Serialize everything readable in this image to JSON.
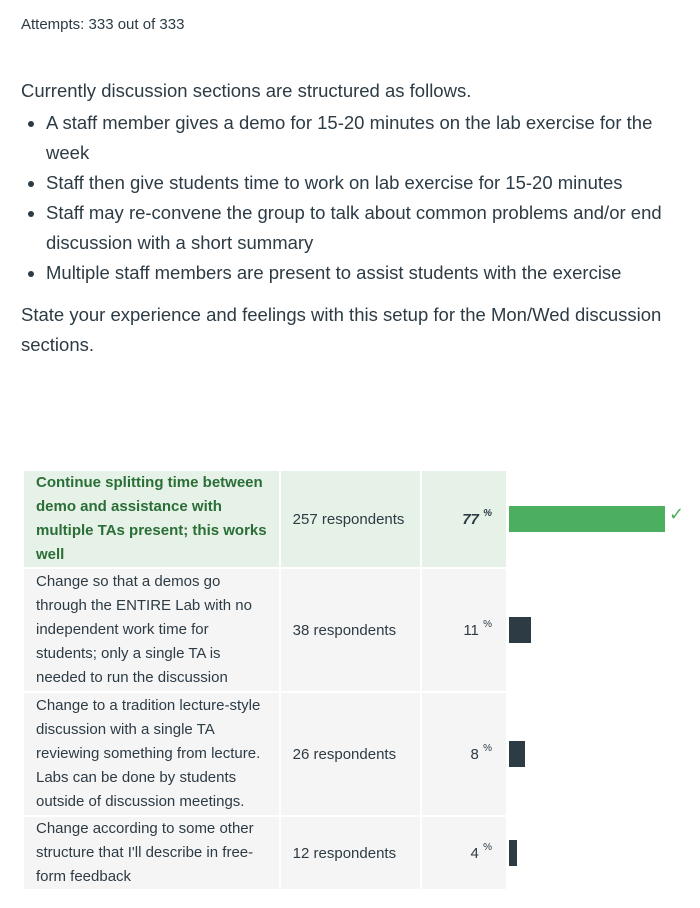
{
  "header": {
    "attempts": "Attempts: 333 out of 333"
  },
  "question": {
    "intro": "Currently discussion sections are structured as follows.",
    "bullets": [
      "A staff member gives a demo for 15-20 minutes on the lab exercise for the week",
      "Staff then give students time to work on lab exercise for 15-20 minutes",
      "Staff may re-convene the group to talk about common problems and/or end discussion with a short summary",
      "Multiple staff members are present to assist students with the exercise"
    ],
    "prompt": "State your experience and feelings with this setup for the Mon/Wed discussion sections."
  },
  "results": [
    {
      "answer": "Continue splitting time between demo and assistance with multiple TAs present; this works well",
      "respondents": "257 respondents",
      "percent": "77",
      "percent_unit": "%",
      "fraction": 0.77,
      "correct": true
    },
    {
      "answer": "Change so that a demos go through the ENTIRE Lab with no independent work time for students; only a single TA is needed to run the discussion",
      "respondents": "38 respondents",
      "percent": "11",
      "percent_unit": "%",
      "fraction": 0.11,
      "correct": false
    },
    {
      "answer": "Change to a tradition lecture-style discussion with a single TA reviewing something from lecture. Labs can be done by students outside of discussion meetings.",
      "respondents": "26 respondents",
      "percent": "8",
      "percent_unit": "%",
      "fraction": 0.08,
      "correct": false
    },
    {
      "answer": "Change according to some other structure that I'll describe in free-form feedback",
      "respondents": "12 respondents",
      "percent": "4",
      "percent_unit": "%",
      "fraction": 0.04,
      "correct": false
    }
  ],
  "colors": {
    "correct_bar": "#4caf60",
    "bar": "#2d3b45",
    "correct_bg": "#e6f2e8",
    "correct_text": "#2a6e36"
  },
  "icons": {
    "correct_marker": "check-icon"
  }
}
